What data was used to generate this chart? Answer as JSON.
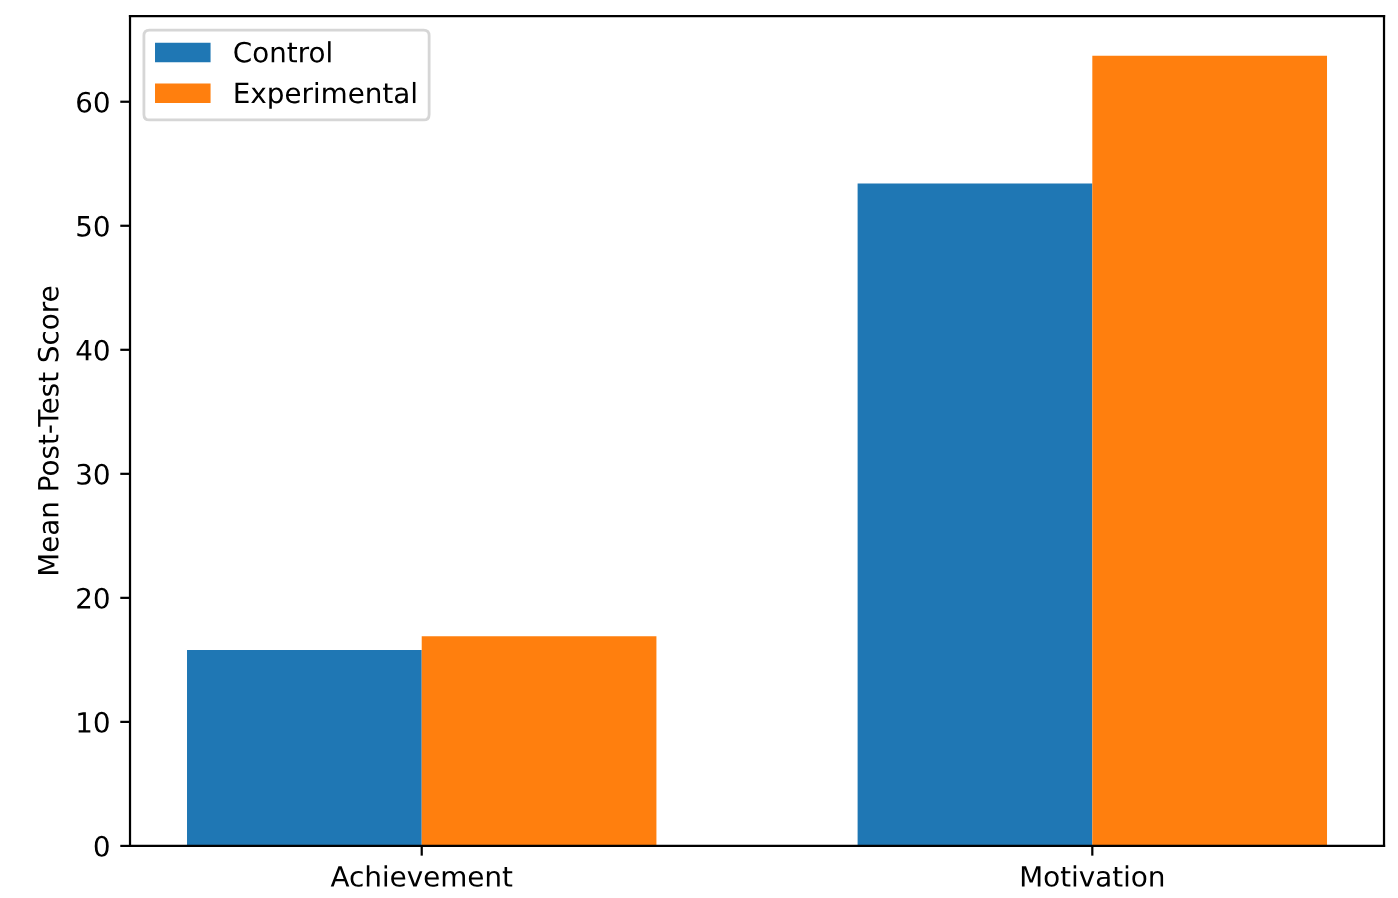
{
  "chart_data": {
    "type": "bar",
    "ylabel": "Mean Post-Test Score",
    "categories": [
      "Achievement",
      "Motivation"
    ],
    "series": [
      {
        "name": "Control",
        "color": "#1f77b4",
        "values": [
          15.8,
          53.4
        ]
      },
      {
        "name": "Experimental",
        "color": "#ff7f0e",
        "values": [
          16.9,
          63.7
        ]
      }
    ],
    "ylim": [
      0,
      66.9
    ],
    "yticks": [
      0,
      10,
      20,
      30,
      40,
      50,
      60
    ],
    "legend": "top left",
    "grid": false
  }
}
